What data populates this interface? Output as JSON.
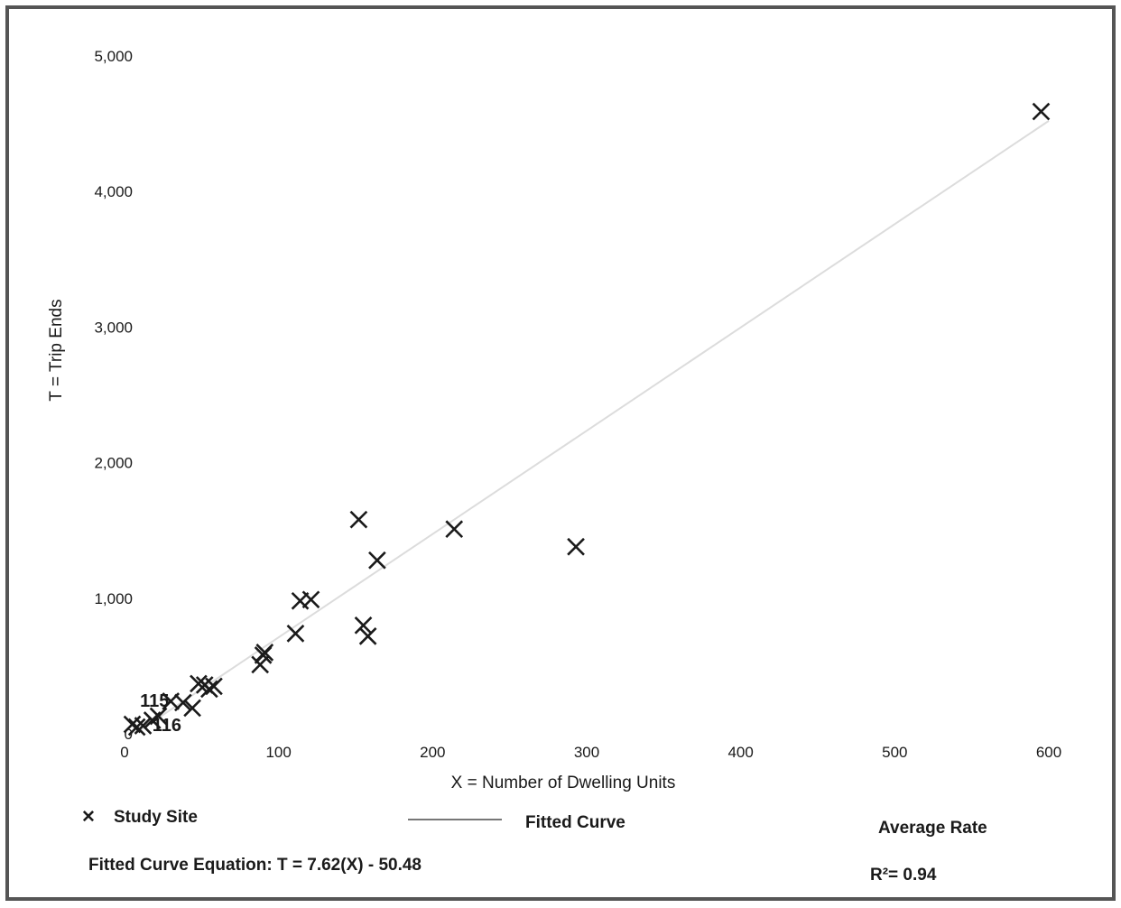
{
  "chart_data": {
    "type": "scatter",
    "xlabel": "X = Number of Dwelling Units",
    "ylabel": "T = Trip Ends",
    "xlim": [
      0,
      600
    ],
    "ylim": [
      0,
      5000
    ],
    "x_ticks": [
      0,
      100,
      200,
      300,
      400,
      500,
      600
    ],
    "x_tick_labels": [
      "0",
      "100",
      "200",
      "300",
      "400",
      "500",
      "600"
    ],
    "y_ticks": [
      0,
      1000,
      2000,
      3000,
      4000,
      5000
    ],
    "y_tick_labels": [
      "0",
      "1,000",
      "2,000",
      "3,000",
      "4,000",
      "5,000"
    ],
    "grid": false,
    "series": [
      {
        "name": "Study Site",
        "marker": "x",
        "color": "#1a1a1a",
        "points": [
          {
            "x": 5,
            "y": 70
          },
          {
            "x": 8,
            "y": 50
          },
          {
            "x": 12,
            "y": 60
          },
          {
            "x": 18,
            "y": 100
          },
          {
            "x": 22,
            "y": 130
          },
          {
            "x": 30,
            "y": 240
          },
          {
            "x": 38,
            "y": 230
          },
          {
            "x": 44,
            "y": 190
          },
          {
            "x": 48,
            "y": 370
          },
          {
            "x": 52,
            "y": 360
          },
          {
            "x": 55,
            "y": 330
          },
          {
            "x": 58,
            "y": 350
          },
          {
            "x": 88,
            "y": 510
          },
          {
            "x": 90,
            "y": 580
          },
          {
            "x": 91,
            "y": 600
          },
          {
            "x": 111,
            "y": 740
          },
          {
            "x": 114,
            "y": 980
          },
          {
            "x": 121,
            "y": 990
          },
          {
            "x": 152,
            "y": 1580
          },
          {
            "x": 155,
            "y": 800
          },
          {
            "x": 158,
            "y": 720
          },
          {
            "x": 164,
            "y": 1280
          },
          {
            "x": 214,
            "y": 1510
          },
          {
            "x": 293,
            "y": 1380
          },
          {
            "x": 595,
            "y": 4590
          }
        ]
      }
    ],
    "fitted_curve": {
      "slope": 7.62,
      "intercept": -50.48,
      "x_range": [
        0,
        600
      ]
    },
    "annotations": [
      {
        "text": "115",
        "x": 10,
        "y": 200
      },
      {
        "text": "116",
        "x": 18,
        "y": 20
      }
    ]
  },
  "legend": {
    "study_site_symbol": "✕",
    "study_site_label": "Study Site",
    "fitted_curve_label": "Fitted Curve",
    "average_rate_label": "Average Rate"
  },
  "footer": {
    "equation": "Fitted Curve Equation: T = 7.62(X) - 50.48",
    "r_squared": "R²= 0.94"
  }
}
